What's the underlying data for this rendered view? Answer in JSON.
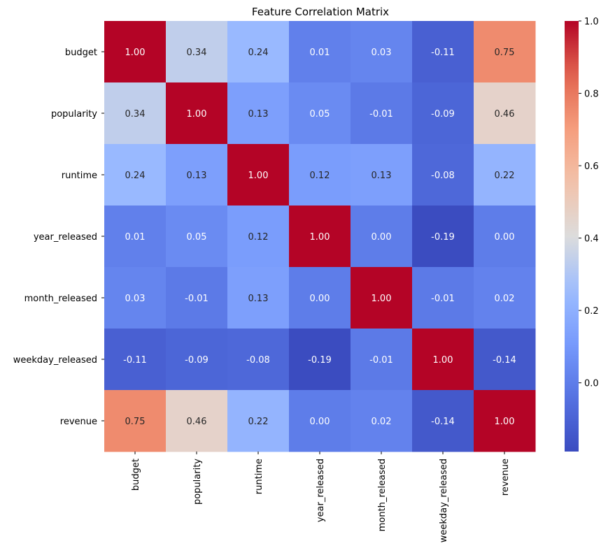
{
  "chart_data": {
    "type": "heatmap",
    "title": "Feature Correlation Matrix",
    "xlabel": "",
    "ylabel": "",
    "row_labels": [
      "budget",
      "popularity",
      "runtime",
      "year_released",
      "month_released",
      "weekday_released",
      "revenue"
    ],
    "col_labels": [
      "budget",
      "popularity",
      "runtime",
      "year_released",
      "month_released",
      "weekday_released",
      "revenue"
    ],
    "values": [
      [
        1.0,
        0.34,
        0.24,
        0.01,
        0.03,
        -0.11,
        0.75
      ],
      [
        0.34,
        1.0,
        0.13,
        0.05,
        -0.01,
        -0.09,
        0.46
      ],
      [
        0.24,
        0.13,
        1.0,
        0.12,
        0.13,
        -0.08,
        0.22
      ],
      [
        0.01,
        0.05,
        0.12,
        1.0,
        0.0,
        -0.19,
        0.0
      ],
      [
        0.03,
        -0.01,
        0.13,
        0.0,
        1.0,
        -0.01,
        0.02
      ],
      [
        -0.11,
        -0.09,
        -0.08,
        -0.19,
        -0.01,
        1.0,
        -0.14
      ],
      [
        0.75,
        0.46,
        0.22,
        0.0,
        0.02,
        -0.14,
        1.0
      ]
    ],
    "value_labels": [
      [
        "1.00",
        "0.34",
        "0.24",
        "0.01",
        "0.03",
        "-0.11",
        "0.75"
      ],
      [
        "0.34",
        "1.00",
        "0.13",
        "0.05",
        "-0.01",
        "-0.09",
        "0.46"
      ],
      [
        "0.24",
        "0.13",
        "1.00",
        "0.12",
        "0.13",
        "-0.08",
        "0.22"
      ],
      [
        "0.01",
        "0.05",
        "0.12",
        "1.00",
        "0.00",
        "-0.19",
        "0.00"
      ],
      [
        "0.03",
        "-0.01",
        "0.13",
        "0.00",
        "1.00",
        "-0.01",
        "0.02"
      ],
      [
        "-0.11",
        "-0.09",
        "-0.08",
        "-0.19",
        "-0.01",
        "1.00",
        "-0.14"
      ],
      [
        "0.75",
        "0.46",
        "0.22",
        "0.00",
        "0.02",
        "-0.14",
        "1.00"
      ]
    ],
    "colormap": "coolwarm",
    "vmin": -0.19,
    "vmax": 1.0,
    "colorbar_ticks": [
      0.0,
      0.2,
      0.4,
      0.6,
      0.8,
      1.0
    ],
    "colorbar_tick_labels": [
      "0.0",
      "0.2",
      "0.4",
      "0.6",
      "0.8",
      "1.0"
    ],
    "colors": {
      "low": "#3b4cc0",
      "mid": "#dddddd",
      "high": "#b40426",
      "text_dark": "#262626",
      "text_light": "#ffffff"
    }
  }
}
